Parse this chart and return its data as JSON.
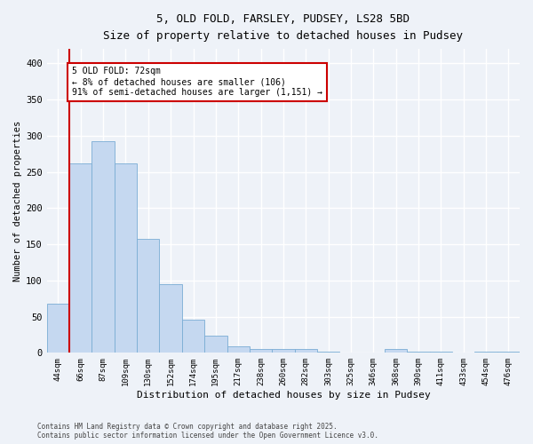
{
  "title_line1": "5, OLD FOLD, FARSLEY, PUDSEY, LS28 5BD",
  "title_line2": "Size of property relative to detached houses in Pudsey",
  "xlabel": "Distribution of detached houses by size in Pudsey",
  "ylabel": "Number of detached properties",
  "categories": [
    "44sqm",
    "66sqm",
    "87sqm",
    "109sqm",
    "130sqm",
    "152sqm",
    "174sqm",
    "195sqm",
    "217sqm",
    "238sqm",
    "260sqm",
    "282sqm",
    "303sqm",
    "325sqm",
    "346sqm",
    "368sqm",
    "390sqm",
    "411sqm",
    "433sqm",
    "454sqm",
    "476sqm"
  ],
  "values": [
    68,
    262,
    293,
    262,
    158,
    95,
    46,
    24,
    9,
    5,
    5,
    5,
    2,
    0,
    0,
    5,
    2,
    2,
    0,
    2,
    2
  ],
  "bar_color": "#c5d8f0",
  "bar_edge_color": "#7aadd4",
  "vline_x": 0.5,
  "vline_color": "#cc0000",
  "annotation_text": "5 OLD FOLD: 72sqm\n← 8% of detached houses are smaller (106)\n91% of semi-detached houses are larger (1,151) →",
  "annotation_box_color": "#ffffff",
  "annotation_box_edge": "#cc0000",
  "ylim": [
    0,
    420
  ],
  "yticks": [
    0,
    50,
    100,
    150,
    200,
    250,
    300,
    350,
    400
  ],
  "background_color": "#eef2f8",
  "grid_color": "#ffffff",
  "footer_line1": "Contains HM Land Registry data © Crown copyright and database right 2025.",
  "footer_line2": "Contains public sector information licensed under the Open Government Licence v3.0."
}
